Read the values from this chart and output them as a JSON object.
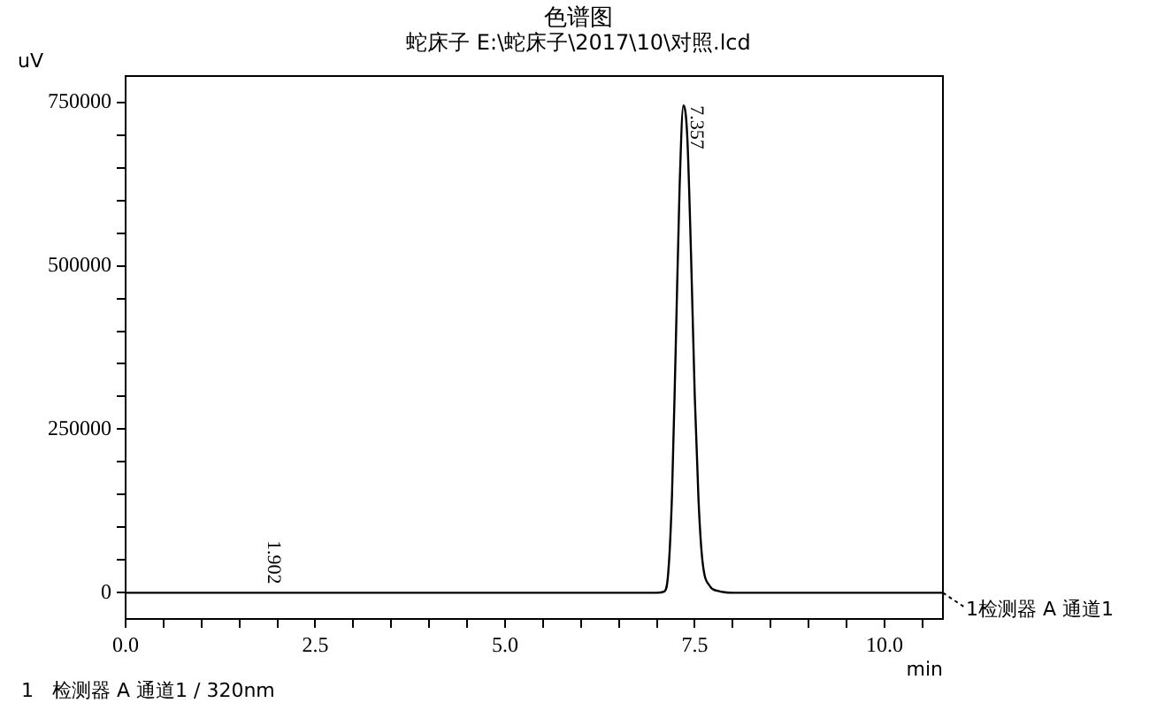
{
  "chart_data": {
    "type": "line",
    "title": "色谱图",
    "subtitle": "蛇床子 E:\\蛇床子\\2017\\10\\对照.lcd",
    "xlabel": "min",
    "ylabel": "uV",
    "series": [
      {
        "name": "1检测器 A 通道1",
        "color": "#000000",
        "x": [
          0,
          1.902,
          7.0,
          7.1,
          7.15,
          7.2,
          7.25,
          7.3,
          7.35,
          7.4,
          7.45,
          7.5,
          7.55,
          7.6,
          7.7,
          7.8,
          8.0,
          10.77
        ],
        "values": [
          0,
          0,
          0,
          2000,
          30000,
          150000,
          380000,
          620000,
          745000,
          700000,
          520000,
          300000,
          140000,
          50000,
          10000,
          3000,
          0,
          0
        ]
      }
    ],
    "xlim": [
      0,
      10.77
    ],
    "ylim": [
      -40000,
      790000
    ],
    "xticks": [
      {
        "value": 0,
        "label": "0.0"
      },
      {
        "value": 0.5,
        "label": null
      },
      {
        "value": 1,
        "label": null
      },
      {
        "value": 1.5,
        "label": null
      },
      {
        "value": 2,
        "label": null
      },
      {
        "value": 2.5,
        "label": "2.5"
      },
      {
        "value": 3,
        "label": null
      },
      {
        "value": 3.5,
        "label": null
      },
      {
        "value": 4,
        "label": null
      },
      {
        "value": 4.5,
        "label": null
      },
      {
        "value": 5,
        "label": "5.0"
      },
      {
        "value": 5.5,
        "label": null
      },
      {
        "value": 6,
        "label": null
      },
      {
        "value": 6.5,
        "label": null
      },
      {
        "value": 7,
        "label": null
      },
      {
        "value": 7.5,
        "label": "7.5"
      },
      {
        "value": 8,
        "label": null
      },
      {
        "value": 8.5,
        "label": null
      },
      {
        "value": 9,
        "label": null
      },
      {
        "value": 9.5,
        "label": null
      },
      {
        "value": 10,
        "label": "10.0"
      },
      {
        "value": 10.5,
        "label": null
      }
    ],
    "yticks": [
      0,
      {
        "value": 50000,
        "label": null
      },
      {
        "value": 100000,
        "label": null
      },
      {
        "value": 150000,
        "label": null
      },
      {
        "value": 200000,
        "label": null
      },
      250000,
      {
        "value": 300000,
        "label": null
      },
      {
        "value": 350000,
        "label": null
      },
      {
        "value": 400000,
        "label": null
      },
      {
        "value": 450000,
        "label": null
      },
      500000,
      {
        "value": 550000,
        "label": null
      },
      {
        "value": 600000,
        "label": null
      },
      {
        "value": 650000,
        "label": null
      },
      {
        "value": 700000,
        "label": null
      },
      750000
    ],
    "annotations": [
      {
        "text": "7.357",
        "x": 7.357,
        "y": 745000
      },
      {
        "text": "1.902",
        "x": 1.902,
        "y": 0
      },
      "1   检测器 A 通道1 / 320nm"
    ],
    "grid": false,
    "legend": "right",
    "marker": "none",
    "line_style": "solid"
  }
}
